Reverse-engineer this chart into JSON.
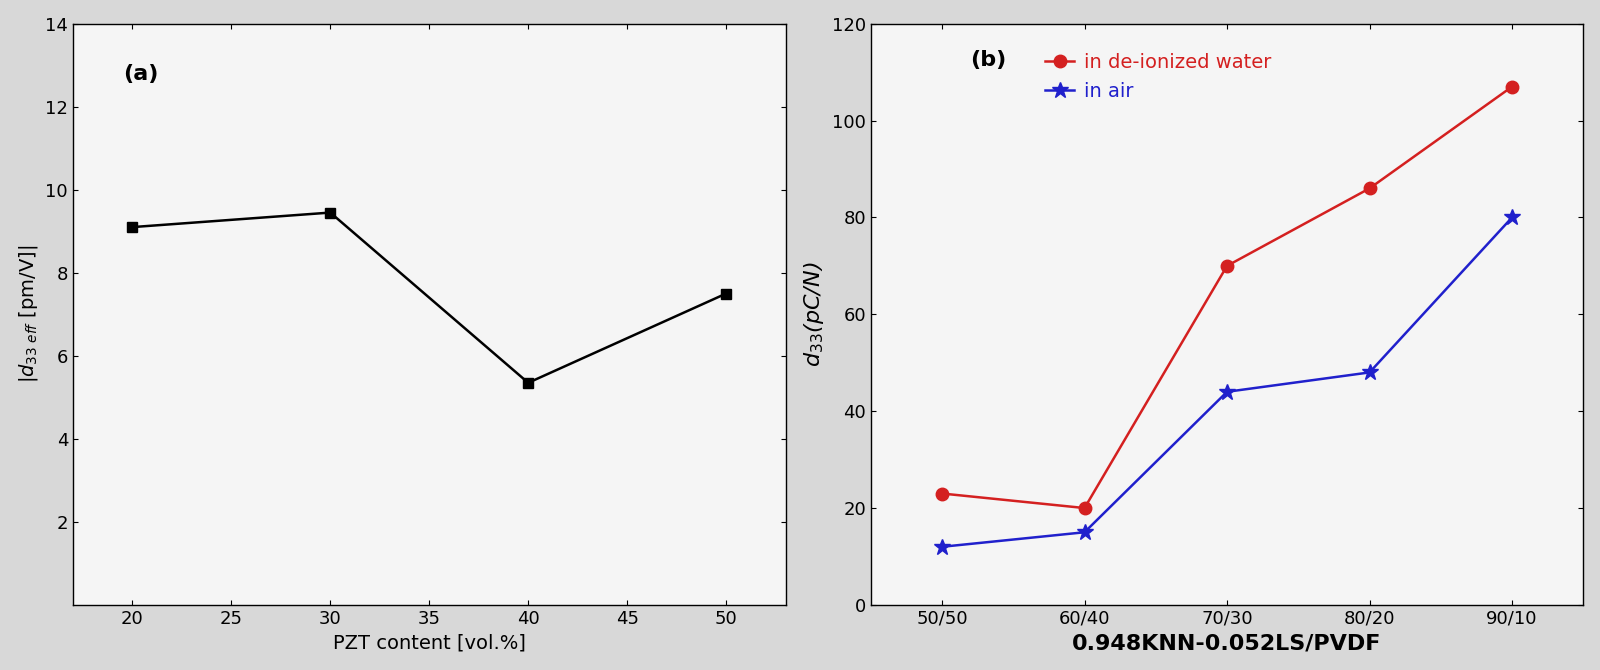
{
  "plot_a": {
    "x": [
      20,
      30,
      40,
      50
    ],
    "y": [
      9.1,
      9.45,
      5.35,
      7.5
    ],
    "xlabel": "PZT content [vol.%]",
    "xlim": [
      17,
      53
    ],
    "ylim": [
      0,
      14
    ],
    "xticks": [
      20,
      25,
      30,
      35,
      40,
      45,
      50
    ],
    "yticks": [
      2,
      4,
      6,
      8,
      10,
      12,
      14
    ],
    "label": "(a)",
    "marker": "s",
    "color": "#000000",
    "linewidth": 1.8,
    "markersize": 7
  },
  "plot_b": {
    "x_labels": [
      "50/50",
      "60/40",
      "70/30",
      "80/20",
      "90/10"
    ],
    "x_vals": [
      0,
      1,
      2,
      3,
      4
    ],
    "y_water": [
      23,
      20,
      70,
      86,
      107
    ],
    "y_air": [
      12,
      15,
      44,
      48,
      80
    ],
    "xlabel": "0.948KNN-0.052LS/PVDF",
    "ylim": [
      0,
      120
    ],
    "yticks": [
      0,
      20,
      40,
      60,
      80,
      100,
      120
    ],
    "label": "(b)",
    "color_water": "#d42020",
    "color_air": "#2020cc",
    "marker_water": "o",
    "marker_air": "*",
    "linewidth": 1.8,
    "markersize_water": 9,
    "markersize_air": 12,
    "legend_water": "in de-ionized water",
    "legend_air": "in air"
  },
  "bg_color": "#d8d8d8",
  "plot_bg": "#f5f5f5",
  "label_fontsize": 14,
  "tick_fontsize": 13,
  "panel_label_fontsize": 16
}
